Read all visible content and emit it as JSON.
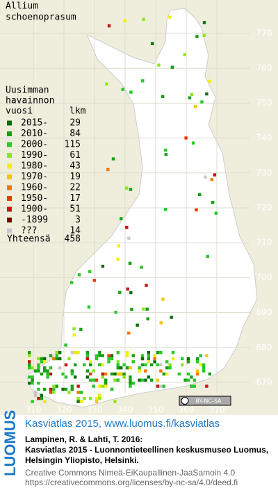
{
  "map": {
    "title": [
      "Allium",
      "schoenoprasum"
    ],
    "legend": {
      "heading": [
        "Uusimman",
        "havainnon",
        "vuosi"
      ],
      "count_heading": "lkm",
      "rows": [
        {
          "label": "2015-",
          "count": "29",
          "color": "#0a6e0a"
        },
        {
          "label": "2010-",
          "count": "84",
          "color": "#14a014"
        },
        {
          "label": "2000-",
          "count": "115",
          "color": "#28c828"
        },
        {
          "label": "1990-",
          "count": "61",
          "color": "#8ce61e"
        },
        {
          "label": "1980-",
          "count": "43",
          "color": "#f0f000"
        },
        {
          "label": "1970-",
          "count": "19",
          "color": "#f0c800"
        },
        {
          "label": "1960-",
          "count": "22",
          "color": "#f07800"
        },
        {
          "label": "1950-",
          "count": "17",
          "color": "#e63c00"
        },
        {
          "label": "1900-",
          "count": "51",
          "color": "#c81414"
        },
        {
          "label": "-1899",
          "count": "3",
          "color": "#780000"
        },
        {
          "label": "???",
          "count": "14",
          "color": "#c8c8c8"
        }
      ],
      "total_label": "Yhteensä",
      "total": "458"
    },
    "x_ticks": [
      "310",
      "320",
      "330",
      "340",
      "350",
      "360",
      "370"
    ],
    "y_ticks": [
      "770",
      "760",
      "750",
      "740",
      "730",
      "720",
      "710",
      "700",
      "690",
      "680",
      "670"
    ],
    "license_badge": "BY-NC-SA",
    "footer": {
      "logo": "LUOMUS",
      "headline": "Kasviatlas 2015, www.luomus.fi/kasviatlas",
      "citation": [
        "Lampinen, R. & Lahti, T. 2016:",
        "Kasviatlas 2015 - Luonnontieteellinen keskusmuseo Luomus,",
        "Helsingin Yliopisto, Helsinki."
      ],
      "license": [
        "Creative Commons Nimeä-EiKaupallinen-JaaSamoin 4.0",
        "https://creativecommons.org/licenses/by-nc-sa/4.0/deed.fi"
      ]
    }
  }
}
